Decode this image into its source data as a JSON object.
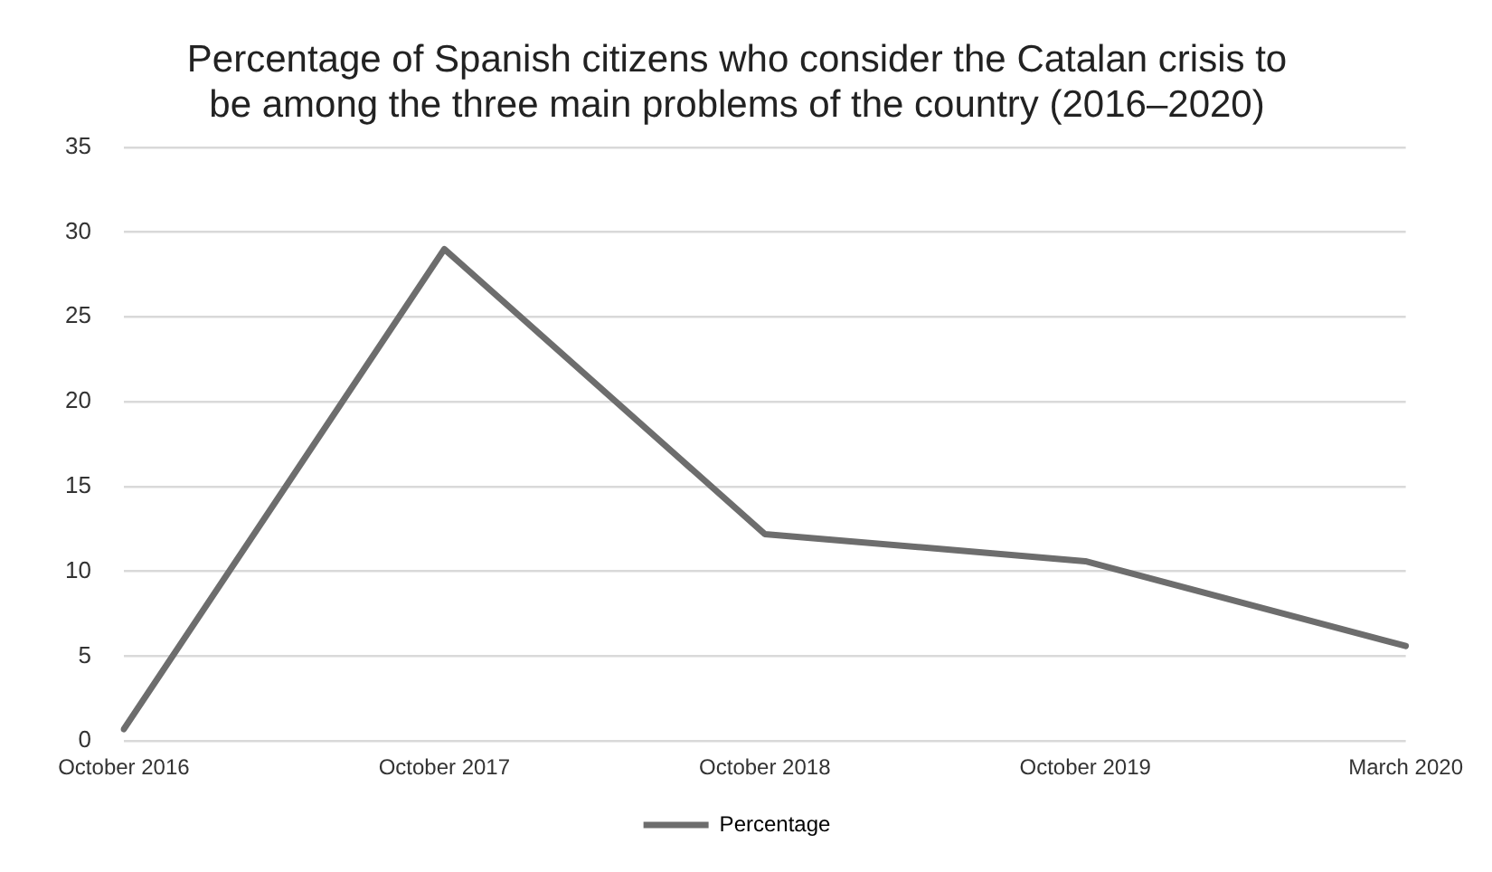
{
  "chart_data": {
    "type": "line",
    "title": [
      "Percentage of Spanish citizens who consider the Catalan crisis to",
      "be among the three main problems of the country (2016–2020)"
    ],
    "categories": [
      "October 2016",
      "October 2017",
      "October 2018",
      "October 2019",
      "March 2020"
    ],
    "series": [
      {
        "name": "Percentage",
        "color": "#6d6d6d",
        "values": [
          0.7,
          29.0,
          12.2,
          10.6,
          5.6
        ]
      }
    ],
    "ylim": [
      0,
      35
    ],
    "yticks": [
      0,
      5,
      10,
      15,
      20,
      25,
      30,
      35
    ],
    "grid": "y",
    "legend": "bottom",
    "marker": "none",
    "line_style": "solid"
  }
}
